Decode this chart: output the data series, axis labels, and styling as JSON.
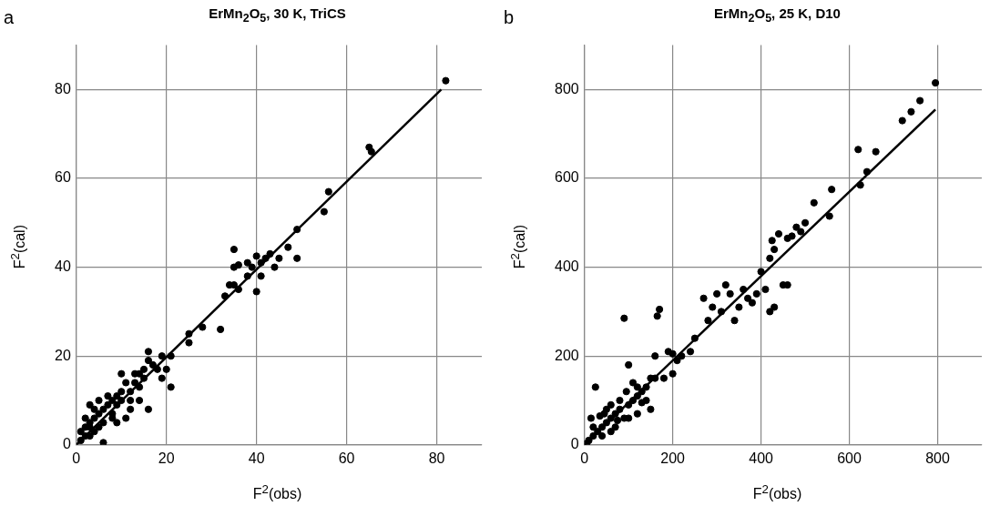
{
  "chart_data": [
    {
      "type": "scatter",
      "title": "ErMn$_{2}$O$_{5}$, 30 K, TriCS",
      "xlabel": "F$^{2}$(obs)",
      "ylabel": "F$^{2}$(cal)",
      "annotations": [
        "a"
      ],
      "xlim": [
        0,
        90
      ],
      "ylim": [
        0,
        90
      ],
      "xticks": [
        0,
        20,
        40,
        60,
        80
      ],
      "yticks": [
        0,
        20,
        40,
        60,
        80
      ],
      "grid": true,
      "legend": false,
      "series": [
        {
          "marker": "circle",
          "color": "#000000",
          "x": [
            82,
            65,
            65.5,
            56,
            55,
            49,
            49,
            47,
            45,
            44,
            43,
            42,
            41,
            41,
            40,
            40,
            39,
            38,
            38,
            36,
            36,
            35,
            35,
            35,
            34,
            33,
            32,
            28,
            25,
            25,
            21,
            21,
            20,
            19,
            19,
            18,
            17,
            16,
            16,
            16,
            15,
            15,
            14,
            14,
            13,
            13,
            12,
            12,
            11,
            11,
            10,
            10,
            10,
            9,
            9,
            8,
            8,
            7,
            7,
            6,
            6,
            5,
            5,
            5,
            4,
            4,
            3,
            3,
            3,
            2,
            2,
            1,
            1,
            6,
            8,
            12,
            14,
            9,
            4,
            2,
            3
          ],
          "values": [
            82,
            67,
            66,
            57,
            52.5,
            48.5,
            42,
            44.5,
            42,
            40,
            43,
            42,
            41,
            38,
            34.5,
            42.5,
            40,
            38,
            41,
            40.5,
            35,
            44,
            40,
            36,
            36,
            33.5,
            26,
            26.5,
            25,
            23,
            13,
            20,
            17,
            15,
            20,
            17,
            18,
            21,
            19,
            8,
            17,
            15,
            16,
            13,
            16,
            14,
            12,
            10,
            14,
            6,
            12,
            10,
            16,
            11,
            9,
            10,
            7,
            9,
            11,
            8,
            5,
            7,
            4,
            10,
            6,
            3,
            5,
            2,
            9,
            4,
            2,
            3,
            1,
            0.5,
            6,
            8,
            10,
            5,
            8,
            6,
            4
          ]
        },
        {
          "type": "line",
          "marker": "none",
          "color": "#000000",
          "x": [
            0,
            81
          ],
          "values": [
            0,
            80
          ]
        }
      ]
    },
    {
      "type": "scatter",
      "title": "ErMn$_{2}$O$_{5}$, 25 K, D10",
      "xlabel": "F$^{2}$(obs)",
      "ylabel": "F$^{2}$(cal)",
      "annotations": [
        "b"
      ],
      "xlim": [
        0,
        900
      ],
      "ylim": [
        0,
        900
      ],
      "xticks": [
        0,
        200,
        400,
        600,
        800
      ],
      "yticks": [
        0,
        200,
        400,
        600,
        800
      ],
      "grid": true,
      "legend": false,
      "series": [
        {
          "marker": "circle",
          "color": "#000000",
          "x": [
            795,
            760,
            720,
            740,
            660,
            640,
            625,
            620,
            560,
            555,
            520,
            500,
            490,
            480,
            470,
            460,
            460,
            450,
            440,
            430,
            420,
            425,
            420,
            430,
            410,
            400,
            390,
            380,
            370,
            360,
            350,
            340,
            330,
            320,
            310,
            300,
            290,
            280,
            270,
            250,
            240,
            220,
            210,
            200,
            200,
            170,
            165,
            160,
            150,
            140,
            130,
            120,
            110,
            100,
            90,
            100,
            80,
            70,
            60,
            50,
            40,
            30,
            20,
            10,
            5,
            25,
            15,
            35,
            50,
            60,
            90,
            110,
            130,
            150,
            120,
            80,
            40,
            70,
            100,
            140,
            160,
            190,
            180,
            120,
            60,
            20,
            45,
            75,
            95
          ],
          "values": [
            815,
            775,
            730,
            750,
            660,
            615,
            585,
            665,
            575,
            515,
            545,
            500,
            480,
            490,
            470,
            465,
            360,
            360,
            475,
            440,
            420,
            460,
            300,
            310,
            350,
            390,
            340,
            320,
            330,
            350,
            310,
            280,
            340,
            360,
            300,
            340,
            310,
            280,
            330,
            240,
            210,
            200,
            190,
            160,
            205,
            305,
            290,
            200,
            150,
            130,
            120,
            110,
            100,
            90,
            285,
            180,
            80,
            70,
            60,
            50,
            40,
            30,
            20,
            10,
            3,
            130,
            60,
            65,
            80,
            90,
            60,
            140,
            95,
            80,
            70,
            100,
            20,
            40,
            60,
            100,
            150,
            210,
            150,
            130,
            30,
            40,
            70,
            55,
            120
          ]
        },
        {
          "type": "line",
          "marker": "none",
          "color": "#000000",
          "x": [
            0,
            795
          ],
          "values": [
            0,
            755
          ]
        }
      ]
    }
  ]
}
